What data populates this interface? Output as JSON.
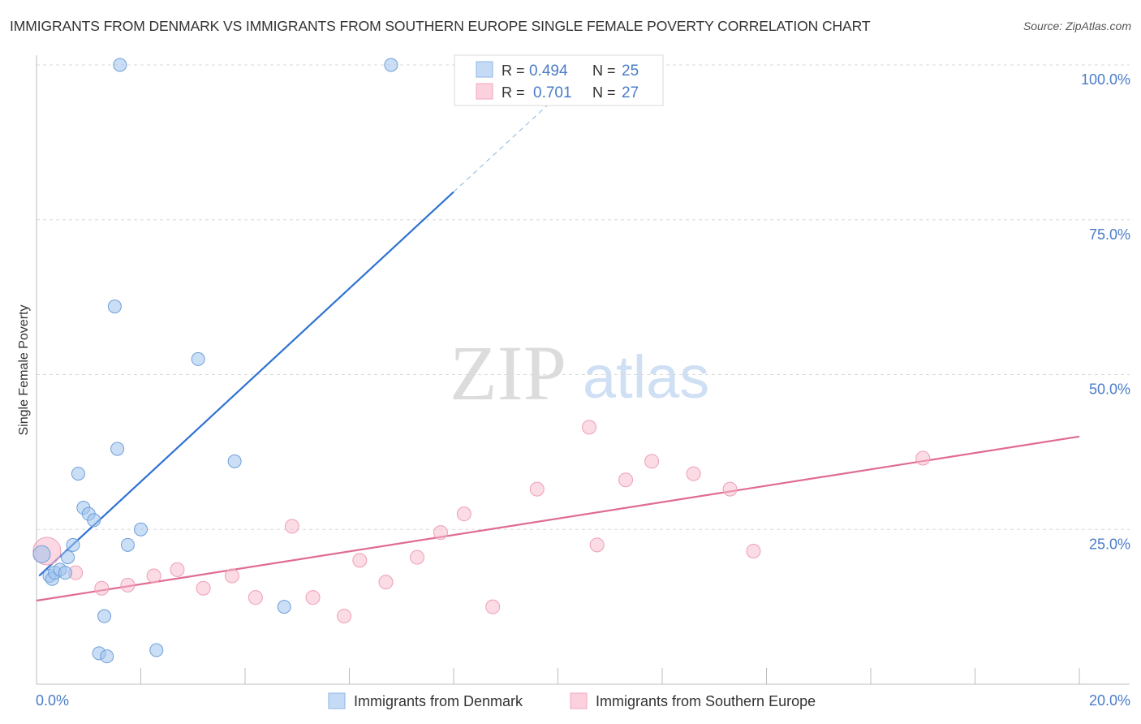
{
  "header": {
    "title": "IMMIGRANTS FROM DENMARK VS IMMIGRANTS FROM SOUTHERN EUROPE SINGLE FEMALE POVERTY CORRELATION CHART",
    "source": "Source: ZipAtlas.com"
  },
  "watermark": {
    "zip": "ZIP",
    "atlas": "atlas"
  },
  "colors": {
    "blue": "#9fc3ee",
    "blue_line": "#2f72d1",
    "pink": "#f7b8ca",
    "pink_line": "#e06b93",
    "tick": "#4a7cc9"
  },
  "legend": {
    "r_label": "R =",
    "n_label": "N =",
    "rows": [
      {
        "r": "0.494",
        "n": "25"
      },
      {
        "r": "0.701",
        "n": "27"
      }
    ]
  },
  "bottom_legend": [
    "Immigrants from Denmark",
    "Immigrants from Southern Europe"
  ],
  "chart_data": {
    "type": "scatter",
    "title": "IMMIGRANTS FROM DENMARK VS IMMIGRANTS FROM SOUTHERN EUROPE SINGLE FEMALE POVERTY CORRELATION CHART",
    "xlabel": "",
    "ylabel": "Single Female Poverty",
    "xlim": [
      0,
      20
    ],
    "ylim": [
      0,
      100
    ],
    "x_tick_labels": [
      "0.0%",
      "20.0%"
    ],
    "y_ticks": [
      25,
      50,
      75,
      100
    ],
    "y_tick_labels": [
      "25.0%",
      "50.0%",
      "75.0%",
      "100.0%"
    ],
    "series": [
      {
        "name": "Immigrants from Denmark",
        "R": 0.494,
        "N": 25,
        "points": [
          [
            0.1,
            21.0
          ],
          [
            0.25,
            17.5
          ],
          [
            0.3,
            17.0
          ],
          [
            0.35,
            18.0
          ],
          [
            0.45,
            18.5
          ],
          [
            0.55,
            18.0
          ],
          [
            0.6,
            20.5
          ],
          [
            0.7,
            22.5
          ],
          [
            0.8,
            34.0
          ],
          [
            0.9,
            28.5
          ],
          [
            1.0,
            27.5
          ],
          [
            1.1,
            26.5
          ],
          [
            1.3,
            11.0
          ],
          [
            1.2,
            5.0
          ],
          [
            1.35,
            4.5
          ],
          [
            1.5,
            61.0
          ],
          [
            1.55,
            38.0
          ],
          [
            1.6,
            100.0
          ],
          [
            2.0,
            25.0
          ],
          [
            1.75,
            22.5
          ],
          [
            2.3,
            5.5
          ],
          [
            3.1,
            52.5
          ],
          [
            3.8,
            36.0
          ],
          [
            4.75,
            12.5
          ],
          [
            6.8,
            100.0
          ]
        ],
        "trend": {
          "x_start": 0.05,
          "y_start": 17.5,
          "x_solid_end": 8.0,
          "y_solid_end": 79.5,
          "x_dash_end": 9.8,
          "y_dash_end": 93.5
        }
      },
      {
        "name": "Immigrants from Southern Europe",
        "R": 0.701,
        "N": 27,
        "points": [
          [
            0.2,
            21.5
          ],
          [
            0.75,
            18.0
          ],
          [
            1.25,
            15.5
          ],
          [
            1.75,
            16.0
          ],
          [
            2.25,
            17.5
          ],
          [
            2.7,
            18.5
          ],
          [
            3.2,
            15.5
          ],
          [
            3.75,
            17.5
          ],
          [
            4.2,
            14.0
          ],
          [
            4.9,
            25.5
          ],
          [
            5.3,
            14.0
          ],
          [
            5.9,
            11.0
          ],
          [
            6.2,
            20.0
          ],
          [
            6.7,
            16.5
          ],
          [
            7.3,
            20.5
          ],
          [
            7.75,
            24.5
          ],
          [
            8.2,
            27.5
          ],
          [
            8.75,
            12.5
          ],
          [
            9.6,
            31.5
          ],
          [
            10.6,
            41.5
          ],
          [
            10.75,
            22.5
          ],
          [
            11.3,
            33.0
          ],
          [
            11.8,
            36.0
          ],
          [
            12.6,
            34.0
          ],
          [
            13.3,
            31.5
          ],
          [
            13.75,
            21.5
          ],
          [
            17.0,
            36.5
          ]
        ],
        "trend": {
          "x_start": 0.0,
          "y_start": 13.5,
          "x_end": 20.0,
          "y_end": 40.0
        }
      }
    ]
  }
}
